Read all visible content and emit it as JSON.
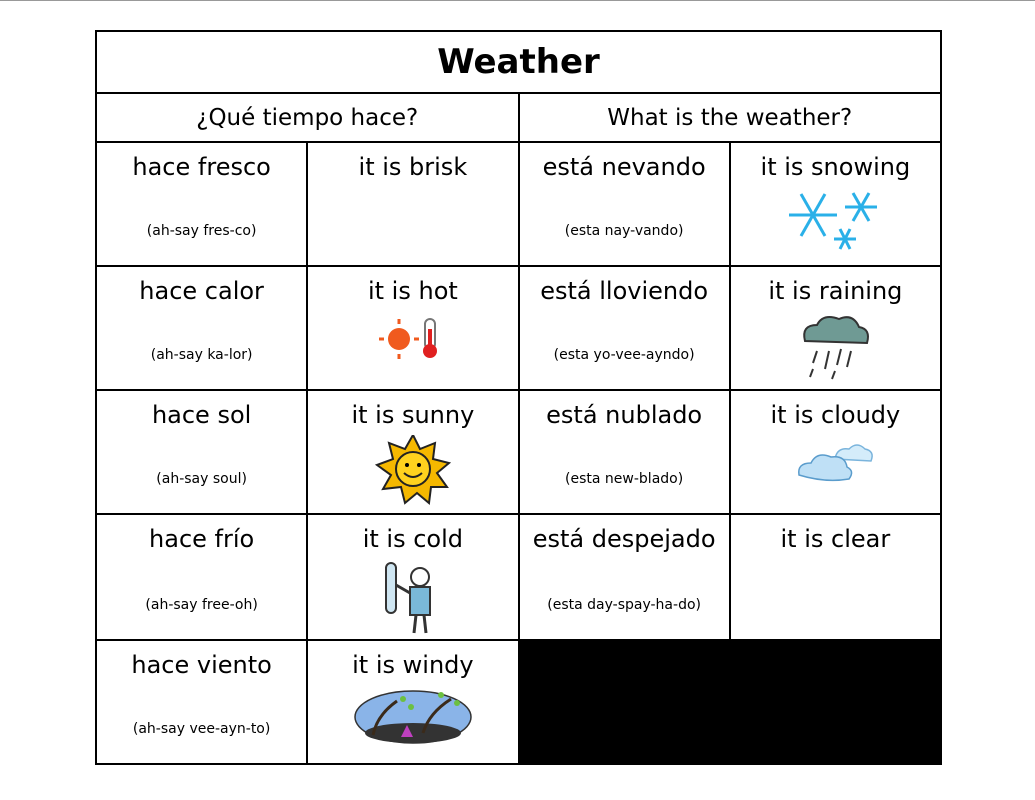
{
  "title": "Weather",
  "headers": [
    "¿Qué tiempo hace?",
    "What is the weather?"
  ],
  "rows": [
    {
      "es1": "hace fresco",
      "pron1": "(ah-say fres-co)",
      "en1": "it is brisk",
      "icon1": "none",
      "es2": "está nevando",
      "pron2": "(esta nay-vando)",
      "en2": "it is snowing",
      "icon2": "snowflake-icon"
    },
    {
      "es1": "hace calor",
      "pron1": "(ah-say ka-lor)",
      "en1": "it is hot",
      "icon1": "sun-thermometer-icon",
      "es2": "está lloviendo",
      "pron2": "(esta yo-vee-ayndo)",
      "en2": "it is raining",
      "icon2": "rain-cloud-icon"
    },
    {
      "es1": "hace sol",
      "pron1": "(ah-say soul)",
      "en1": "it is sunny",
      "icon1": "smiling-sun-icon",
      "es2": "está nublado",
      "pron2": "(esta new-blado)",
      "en2": "it is cloudy",
      "icon2": "cloud-icon"
    },
    {
      "es1": "hace frío",
      "pron1": "(ah-say free-oh)",
      "en1": "it is cold",
      "icon1": "cold-person-icon",
      "es2": "está despejado",
      "pron2": "(esta day-spay-ha-do)",
      "en2": "it is clear",
      "icon2": "none"
    },
    {
      "es1": "hace viento",
      "pron1": "(ah-say vee-ayn-to)",
      "en1": "it is windy",
      "icon1": "windy-trees-icon"
    }
  ]
}
